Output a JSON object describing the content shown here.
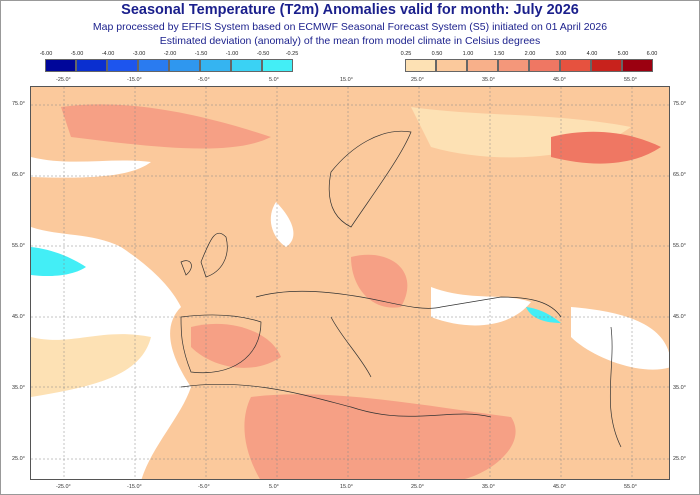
{
  "title": "Seasonal Temperature (T2m) Anomalies valid for month: July 2026",
  "subtitle1": "Map processed by EFFIS System based on ECMWF Seasonal Forecast System (S5) initiated on 01 April 2026",
  "subtitle2": "Estimated deviation (anomaly) of the mean from model climate in Celsius degrees",
  "legend_negative": {
    "ticks": [
      "-6.00",
      "-5.00",
      "-4.00",
      "-3.00",
      "-2.00",
      "-1.50",
      "-1.00",
      "-0.50",
      "-0.25"
    ],
    "colors": [
      "#00069a",
      "#0a2fd0",
      "#1d55ee",
      "#2a7bf0",
      "#2f97ef",
      "#35b4f1",
      "#3ad2f4",
      "#43eef6"
    ]
  },
  "legend_positive": {
    "ticks": [
      "0.25",
      "0.50",
      "1.00",
      "1.50",
      "2.00",
      "3.00",
      "4.00",
      "5.00",
      "6.00"
    ],
    "colors": [
      "#fde1b4",
      "#fbc99c",
      "#f8b08a",
      "#f4977a",
      "#ef7763",
      "#e6523f",
      "#c8221c",
      "#9b0010"
    ]
  },
  "longitude_labels": [
    "-25.0°",
    "-15.0°",
    "-5.0°",
    "5.0°",
    "15.0°",
    "25.0°",
    "35.0°",
    "45.0°",
    "55.0°"
  ],
  "latitude_labels": [
    "75.0°",
    "65.0°",
    "55.0°",
    "45.0°",
    "35.0°",
    "25.0°"
  ],
  "colors": {
    "title": "#1a1f8c",
    "base_anomaly": "#fbc99c"
  }
}
